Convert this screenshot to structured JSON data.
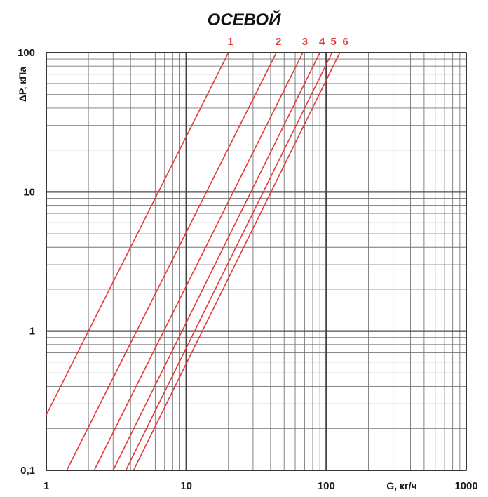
{
  "chart_data": {
    "type": "line",
    "title": "ОСЕВОЙ",
    "xlabel": "G, кг/ч",
    "ylabel": "ΔP, кПа",
    "x_scale": "log",
    "y_scale": "log",
    "xlim": [
      1,
      1000
    ],
    "ylim": [
      0.1,
      100
    ],
    "x_ticks": [
      "1",
      "10",
      "100",
      "1000"
    ],
    "y_ticks": [
      "0,1",
      "1",
      "10",
      "100"
    ],
    "grid": true,
    "line_color": "#e53935",
    "label_color": "#e53935",
    "series": [
      {
        "name": "1",
        "x": [
          1,
          20
        ],
        "y": [
          0.25,
          100
        ]
      },
      {
        "name": "2",
        "x": [
          1.4,
          44
        ],
        "y": [
          0.1,
          100
        ]
      },
      {
        "name": "3",
        "x": [
          2.2,
          68
        ],
        "y": [
          0.1,
          100
        ]
      },
      {
        "name": "4",
        "x": [
          3,
          90
        ],
        "y": [
          0.1,
          100
        ]
      },
      {
        "name": "5",
        "x": [
          3.7,
          110
        ],
        "y": [
          0.1,
          100
        ]
      },
      {
        "name": "6",
        "x": [
          4.2,
          125
        ],
        "y": [
          0.1,
          100
        ]
      }
    ]
  }
}
